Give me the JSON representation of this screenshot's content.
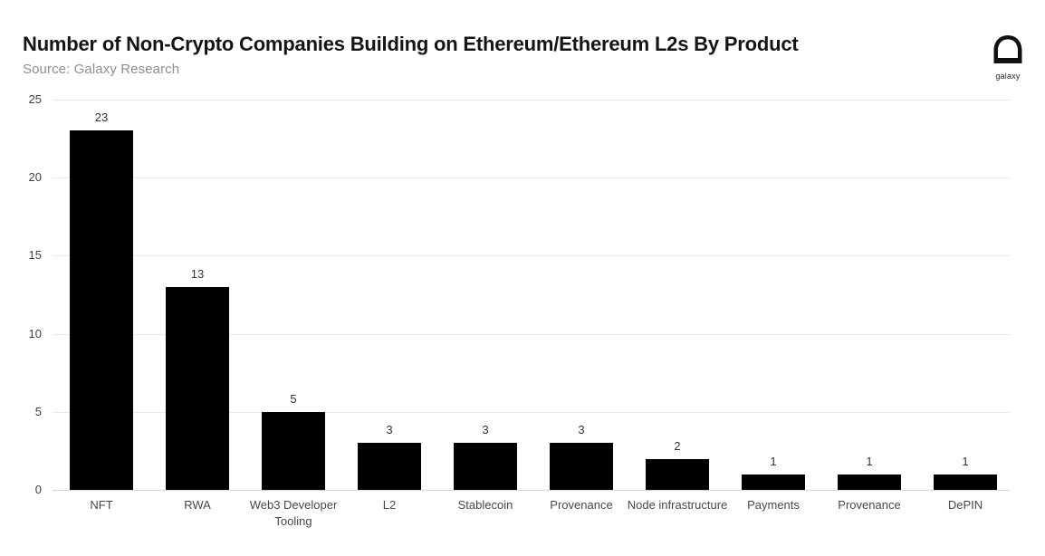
{
  "header": {
    "title": "Number of Non-Crypto Companies Building on Ethereum/Ethereum L2s By Product",
    "source": "Source: Galaxy Research"
  },
  "logo": {
    "label": "galaxy"
  },
  "chart_data": {
    "type": "bar",
    "title": "Number of Non-Crypto Companies Building on Ethereum/Ethereum L2s By Product",
    "categories": [
      "NFT",
      "RWA",
      "Web3 Developer Tooling",
      "L2",
      "Stablecoin",
      "Provenance",
      "Node infrastructure",
      "Payments",
      "Provenance",
      "DePIN"
    ],
    "values": [
      23,
      13,
      5,
      3,
      3,
      3,
      2,
      1,
      1,
      1
    ],
    "data_labels": [
      23,
      13,
      5,
      3,
      3,
      3,
      2,
      1,
      1,
      1
    ],
    "xlabel": "",
    "ylabel": "",
    "yticks": [
      0,
      5,
      10,
      15,
      20,
      25
    ],
    "ylim": [
      0,
      25
    ],
    "grid": true,
    "legend": false,
    "bar_color": "#000000",
    "gridline_color": "#e8e8e8",
    "tick_label_color": "#3f3f3f",
    "value_label_color": "#333333"
  }
}
